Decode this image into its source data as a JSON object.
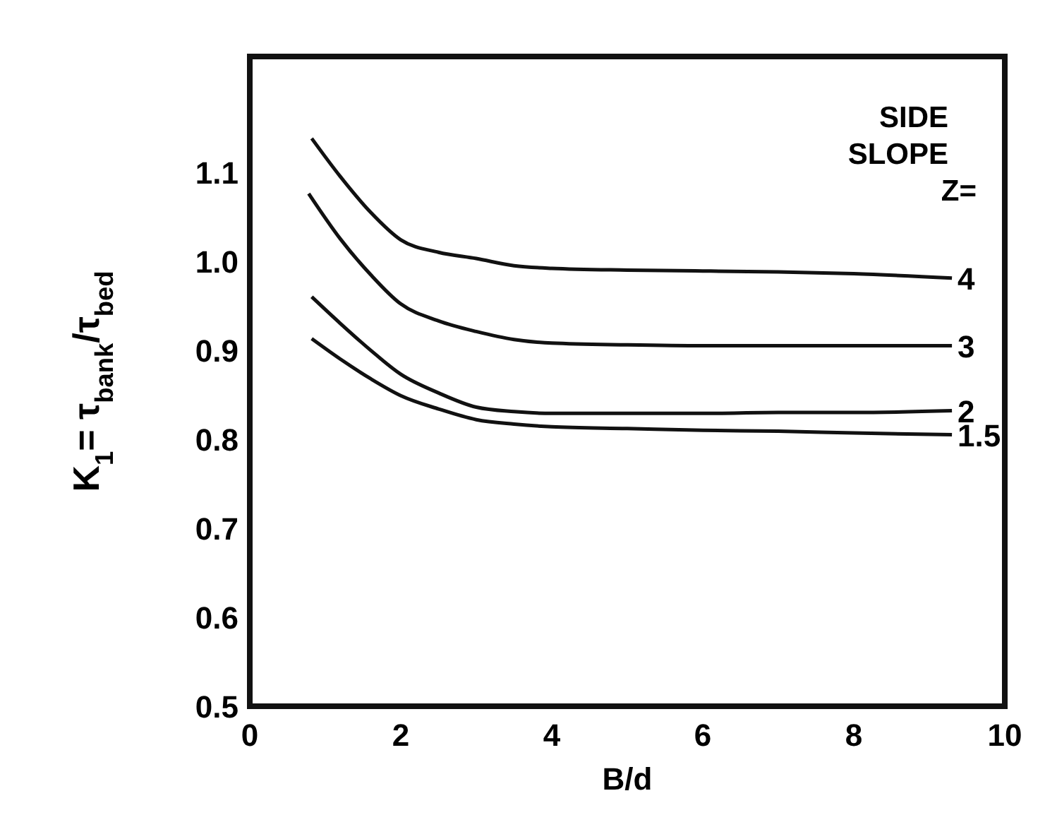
{
  "chart_data": {
    "type": "line",
    "xlabel": "B/d",
    "ylabel": "K$_{1}$= τ$_{bank}$/τ$_{bed}$",
    "legend_title": "SIDE SLOPE Z=",
    "xlim": [
      0,
      10
    ],
    "ylim": [
      0.5,
      1.23
    ],
    "xticks": [
      0,
      2,
      4,
      6,
      8,
      10
    ],
    "yticks": [
      0.5,
      0.6,
      0.7,
      0.8,
      0.9,
      {
        "value": 1,
        "label": "1.0"
      },
      1.1
    ],
    "marker": "none",
    "line_style": "solid",
    "series": [
      {
        "name": "4",
        "color": "#111111",
        "x": [
          0.82,
          1.2,
          1.6,
          2,
          2.5,
          3,
          3.5,
          4,
          5,
          6,
          7,
          8,
          9.3
        ],
        "values": [
          1.138,
          1.095,
          1.055,
          1.024,
          1.01,
          1.003,
          0.995,
          0.992,
          0.99,
          0.989,
          0.988,
          0.986,
          0.981
        ]
      },
      {
        "name": "3",
        "color": "#111111",
        "x": [
          0.78,
          1.2,
          1.6,
          2,
          2.5,
          3,
          3.5,
          4,
          5,
          6,
          7,
          8,
          9.3
        ],
        "values": [
          1.076,
          1.025,
          0.985,
          0.952,
          0.933,
          0.921,
          0.912,
          0.908,
          0.906,
          0.905,
          0.905,
          0.905,
          0.905
        ]
      },
      {
        "name": "2",
        "color": "#111111",
        "x": [
          0.82,
          1.2,
          1.6,
          2,
          2.5,
          3,
          3.5,
          4,
          5,
          6,
          7,
          8,
          9.3
        ],
        "values": [
          0.96,
          0.93,
          0.9,
          0.873,
          0.852,
          0.836,
          0.831,
          0.829,
          0.829,
          0.829,
          0.83,
          0.83,
          0.832
        ]
      },
      {
        "name": "1.5",
        "color": "#111111",
        "x": [
          0.82,
          1.2,
          1.6,
          2,
          2.5,
          3,
          3.5,
          4,
          5,
          6,
          7,
          8,
          9.3
        ],
        "values": [
          0.913,
          0.89,
          0.868,
          0.849,
          0.834,
          0.822,
          0.817,
          0.814,
          0.812,
          0.81,
          0.809,
          0.807,
          0.805
        ]
      }
    ]
  }
}
